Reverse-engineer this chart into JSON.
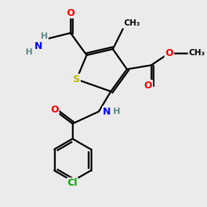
{
  "bg_color": "#ebebeb",
  "bond_color": "#000000",
  "bond_width": 1.8,
  "atom_colors": {
    "O": "#ff0000",
    "N": "#0000ff",
    "S": "#bbbb00",
    "Cl": "#00aa00",
    "C": "#000000",
    "H": "#5a8a8a"
  },
  "font_size": 10
}
